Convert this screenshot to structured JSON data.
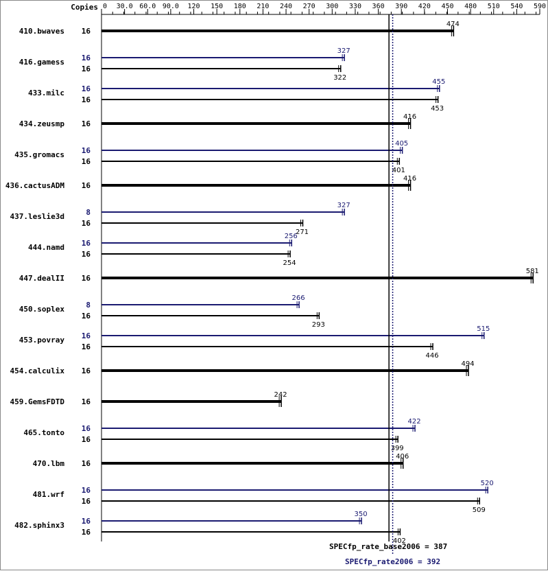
{
  "chart_data": {
    "type": "bar",
    "orientation": "horizontal",
    "copies_header": "Copies",
    "x_ticks": [
      "0",
      "30.0",
      "60.0",
      "90.0",
      "120",
      "150",
      "180",
      "210",
      "240",
      "270",
      "300",
      "330",
      "360",
      "390",
      "420",
      "450",
      "480",
      "510",
      "540",
      "590"
    ],
    "xlim": [
      0,
      590
    ],
    "colors": {
      "base": "#000000",
      "peak": "#191970"
    },
    "series": [
      {
        "key": "peak"
      },
      {
        "key": "base"
      }
    ],
    "benchmarks": [
      {
        "name": "410.bwaves",
        "base_copies": "16",
        "base": 474,
        "base_label": "474",
        "peak": null
      },
      {
        "name": "416.gamess",
        "peak_copies": "16",
        "peak": 327,
        "peak_label": "327",
        "base_copies": "16",
        "base": 322,
        "base_label": "322"
      },
      {
        "name": "433.milc",
        "peak_copies": "16",
        "peak": 455,
        "peak_label": "455",
        "base_copies": "16",
        "base": 453,
        "base_label": "453"
      },
      {
        "name": "434.zeusmp",
        "base_copies": "16",
        "base": 416,
        "base_label": "416",
        "peak": null
      },
      {
        "name": "435.gromacs",
        "peak_copies": "16",
        "peak": 405,
        "peak_label": "405",
        "base_copies": "16",
        "base": 401,
        "base_label": "401"
      },
      {
        "name": "436.cactusADM",
        "base_copies": "16",
        "base": 416,
        "base_label": "416",
        "peak": null
      },
      {
        "name": "437.leslie3d",
        "peak_copies": "8",
        "peak": 327,
        "peak_label": "327",
        "base_copies": "16",
        "base": 271,
        "base_label": "271"
      },
      {
        "name": "444.namd",
        "peak_copies": "16",
        "peak": 256,
        "peak_label": "256",
        "base_copies": "16",
        "base": 254,
        "base_label": "254"
      },
      {
        "name": "447.dealII",
        "base_copies": "16",
        "base": 581,
        "base_label": "581",
        "peak": null
      },
      {
        "name": "450.soplex",
        "peak_copies": "8",
        "peak": 266,
        "peak_label": "266",
        "base_copies": "16",
        "base": 293,
        "base_label": "293"
      },
      {
        "name": "453.povray",
        "peak_copies": "16",
        "peak": 515,
        "peak_label": "515",
        "base_copies": "16",
        "base": 446,
        "base_label": "446"
      },
      {
        "name": "454.calculix",
        "base_copies": "16",
        "base": 494,
        "base_label": "494",
        "peak": null
      },
      {
        "name": "459.GemsFDTD",
        "base_copies": "16",
        "base": 242,
        "base_label": "242",
        "peak": null
      },
      {
        "name": "465.tonto",
        "peak_copies": "16",
        "peak": 422,
        "peak_label": "422",
        "base_copies": "16",
        "base": 399,
        "base_label": "399"
      },
      {
        "name": "470.lbm",
        "base_copies": "16",
        "base": 406,
        "base_label": "406",
        "peak": null
      },
      {
        "name": "481.wrf",
        "peak_copies": "16",
        "peak": 520,
        "peak_label": "520",
        "base_copies": "16",
        "base": 509,
        "base_label": "509"
      },
      {
        "name": "482.sphinx3",
        "peak_copies": "16",
        "peak": 350,
        "peak_label": "350",
        "base_copies": "16",
        "base": 402,
        "base_label": "402"
      }
    ],
    "reference_lines": [
      {
        "key": "base",
        "value": 387,
        "label": "SPECfp_rate_base2006 = 387",
        "style": "solid"
      },
      {
        "key": "peak",
        "value": 392,
        "label": "SPECfp_rate2006 = 392",
        "style": "dotted"
      }
    ]
  }
}
